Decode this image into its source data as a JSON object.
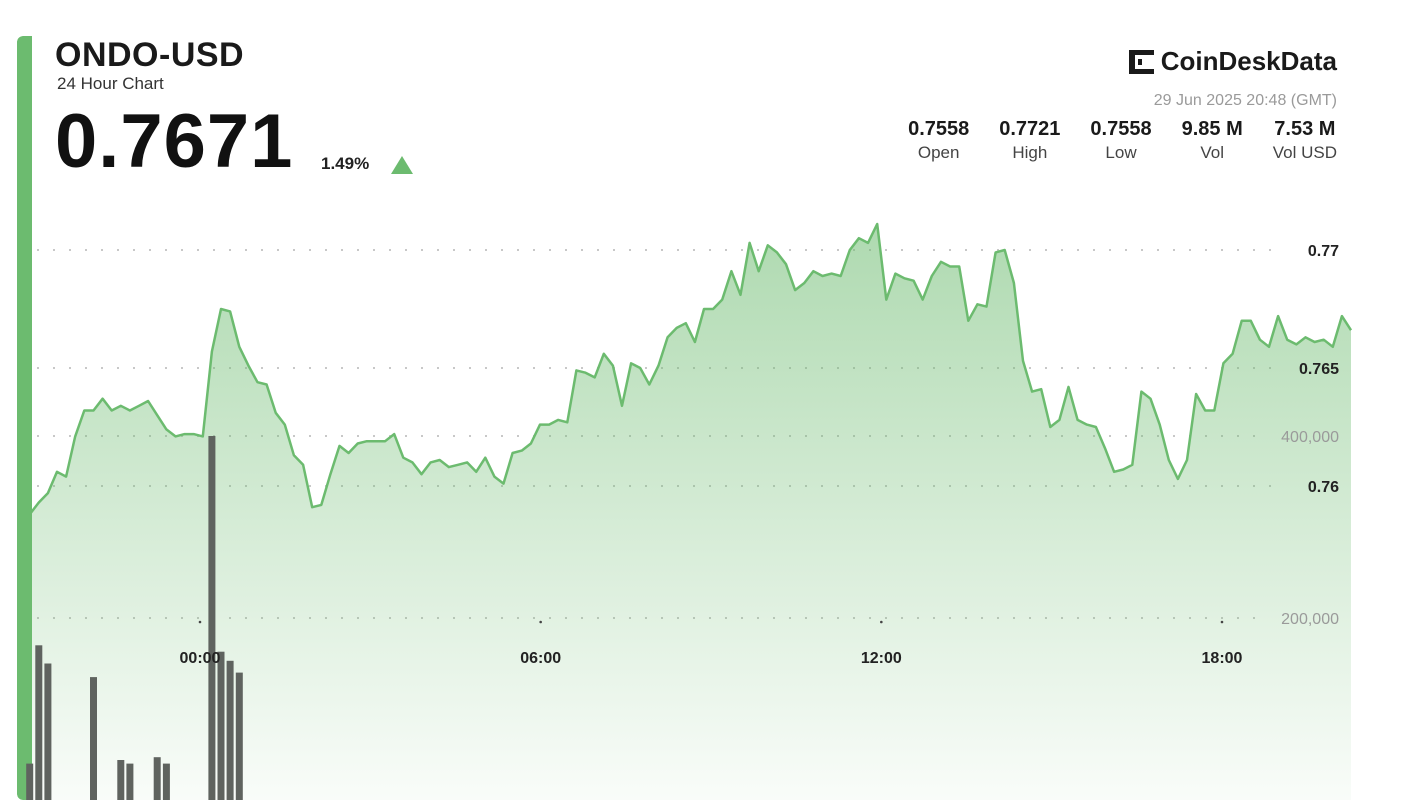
{
  "header": {
    "pair": "ONDO-USD",
    "subtitle": "24 Hour Chart",
    "price": "0.7671",
    "change": "1.49%"
  },
  "brand": {
    "name": "CoinDeskData",
    "icon": "coindesk-logo-icon"
  },
  "timestamp": "29 Jun 2025 20:48 (GMT)",
  "stats": [
    {
      "value": "0.7558",
      "label": "Open"
    },
    {
      "value": "0.7721",
      "label": "High"
    },
    {
      "value": "0.7558",
      "label": "Low"
    },
    {
      "value": "9.85 M",
      "label": "Vol"
    },
    {
      "value": "7.53 M",
      "label": "Vol USD"
    }
  ],
  "colors": {
    "accent": "#6cbb6f",
    "line": "#6cbb6f",
    "volume": "#5f635f",
    "grid": "#c8c8c8",
    "text": "#1a1a1a"
  },
  "chart_data": {
    "type": "line",
    "price_axis": {
      "ticks": [
        0.76,
        0.765,
        0.77
      ],
      "labels": [
        "0.76",
        "0.765",
        "0.77"
      ]
    },
    "volume_axis": {
      "ticks": [
        200000,
        400000
      ],
      "labels": [
        "200,000",
        "400,000"
      ]
    },
    "x_ticks": [
      {
        "hour": 0,
        "label": "00:00"
      },
      {
        "hour": 6,
        "label": "06:00"
      },
      {
        "hour": 12,
        "label": "12:00"
      },
      {
        "hour": 18,
        "label": "18:00"
      }
    ],
    "x_start_hour": -3.0,
    "x_step_hours": 0.1605,
    "grid": true,
    "price": [
      0.7588,
      0.7593,
      0.7597,
      0.7606,
      0.7604,
      0.7621,
      0.7632,
      0.7632,
      0.7637,
      0.7632,
      0.7634,
      0.7632,
      0.7634,
      0.7636,
      0.763,
      0.7624,
      0.7621,
      0.7622,
      0.7622,
      0.7621,
      0.7657,
      0.7675,
      0.7674,
      0.7659,
      0.7651,
      0.7644,
      0.7643,
      0.7631,
      0.7626,
      0.7613,
      0.7609,
      0.7591,
      0.7592,
      0.7605,
      0.7617,
      0.7614,
      0.7618,
      0.7619,
      0.7619,
      0.7619,
      0.7622,
      0.7612,
      0.761,
      0.7605,
      0.761,
      0.7611,
      0.7608,
      0.7609,
      0.761,
      0.7606,
      0.7612,
      0.7604,
      0.7601,
      0.7614,
      0.7615,
      0.7618,
      0.7626,
      0.7626,
      0.7628,
      0.7627,
      0.7649,
      0.7648,
      0.7646,
      0.7656,
      0.7651,
      0.7634,
      0.7652,
      0.765,
      0.7643,
      0.7651,
      0.7663,
      0.7667,
      0.7669,
      0.7661,
      0.7675,
      0.7675,
      0.7679,
      0.7691,
      0.7681,
      0.7703,
      0.7691,
      0.7702,
      0.7699,
      0.7694,
      0.7683,
      0.7686,
      0.7691,
      0.7689,
      0.769,
      0.7689,
      0.77,
      0.7705,
      0.7703,
      0.7711,
      0.7679,
      0.769,
      0.7688,
      0.7687,
      0.7679,
      0.7689,
      0.7695,
      0.7693,
      0.7693,
      0.767,
      0.7677,
      0.7676,
      0.7699,
      0.77,
      0.7686,
      0.7653,
      0.764,
      0.7641,
      0.7625,
      0.7628,
      0.7642,
      0.7628,
      0.7626,
      0.7625,
      0.7616,
      0.7606,
      0.7607,
      0.7609,
      0.764,
      0.7637,
      0.7626,
      0.7611,
      0.7603,
      0.7611,
      0.7639,
      0.7632,
      0.7632,
      0.7652,
      0.7656,
      0.767,
      0.767,
      0.7662,
      0.7659,
      0.7672,
      0.7662,
      0.766,
      0.7663,
      0.7661,
      0.7662,
      0.7659,
      0.7672,
      0.7666
    ],
    "volume": [
      40000,
      170000,
      150000,
      0,
      0,
      0,
      0,
      135000,
      0,
      0,
      44000,
      40000,
      0,
      0,
      47000,
      40000,
      0,
      0,
      0,
      0,
      400000,
      163000,
      153000,
      140000,
      0,
      0,
      0,
      0,
      0,
      0,
      0,
      0,
      0,
      0,
      0,
      0,
      0,
      0,
      0,
      0,
      0,
      0,
      0,
      0,
      0,
      0,
      0,
      0,
      0,
      0,
      0,
      0,
      0,
      0,
      0,
      0,
      0,
      0,
      0,
      0,
      0,
      0,
      0,
      0,
      0,
      0,
      0,
      0,
      0,
      0,
      0,
      0,
      0,
      0,
      0,
      0,
      0,
      0,
      0,
      0,
      0,
      0,
      0,
      0,
      0,
      0,
      0,
      0,
      0,
      0,
      0,
      0,
      0,
      0,
      0,
      0,
      0,
      0,
      0,
      0,
      0,
      0,
      0,
      0,
      0,
      0,
      0,
      0,
      0,
      0,
      0,
      0,
      0,
      0,
      0,
      0,
      0,
      0,
      0,
      0,
      0,
      0,
      0,
      0,
      0,
      0,
      0,
      0,
      0,
      0,
      0,
      0,
      0,
      0,
      0,
      0,
      0,
      0,
      0,
      0,
      0,
      0,
      0,
      0,
      0,
      0,
      0,
      0
    ]
  }
}
